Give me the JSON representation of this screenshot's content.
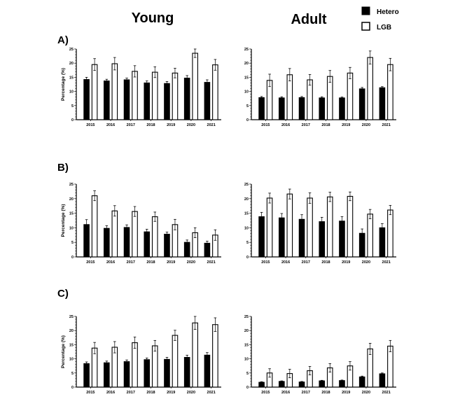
{
  "column_titles": [
    "Young",
    "Adult"
  ],
  "row_labels": [
    "A)",
    "B)",
    "C)"
  ],
  "legend": [
    {
      "name": "Hetero",
      "color": "#000000"
    },
    {
      "name": "LGB",
      "color": "#ffffff"
    }
  ],
  "chart_data": [
    {
      "type": "bar",
      "panel": "A)",
      "column": "Young",
      "categories": [
        "2015",
        "2016",
        "2017",
        "2018",
        "2019",
        "2020",
        "2021"
      ],
      "ylabel": "Percentage (%)",
      "ylim": [
        0,
        25
      ],
      "yticks": [
        "0",
        "5",
        "10",
        "15",
        "20",
        "25"
      ],
      "series": [
        {
          "name": "Hetero",
          "values": [
            14.2,
            13.7,
            14.1,
            13.0,
            12.8,
            14.7,
            13.2
          ],
          "error": [
            0.8,
            0.6,
            0.6,
            0.7,
            0.7,
            0.9,
            0.9
          ]
        },
        {
          "name": "LGB",
          "values": [
            19.5,
            19.8,
            17.1,
            16.8,
            16.5,
            23.5,
            19.4
          ],
          "error": [
            2.1,
            2.2,
            2.0,
            1.9,
            1.7,
            1.5,
            1.9
          ]
        }
      ]
    },
    {
      "type": "bar",
      "panel": "A)",
      "column": "Adult",
      "categories": [
        "2015",
        "2016",
        "2017",
        "2018",
        "2019",
        "2020",
        "2021"
      ],
      "ylabel": "",
      "ylim": [
        0,
        25
      ],
      "yticks": [
        "0",
        "5",
        "10",
        "15",
        "20",
        "25"
      ],
      "series": [
        {
          "name": "Hetero",
          "values": [
            7.8,
            7.7,
            7.8,
            7.7,
            7.7,
            10.9,
            11.3
          ],
          "error": [
            0.4,
            0.4,
            0.4,
            0.4,
            0.3,
            0.5,
            0.4
          ]
        },
        {
          "name": "LGB",
          "values": [
            13.9,
            15.9,
            14.1,
            15.3,
            16.5,
            22.0,
            19.5
          ],
          "error": [
            2.2,
            2.2,
            1.9,
            2.1,
            2.0,
            2.3,
            2.2
          ]
        }
      ]
    },
    {
      "type": "bar",
      "panel": "B)",
      "column": "Young",
      "categories": [
        "2015",
        "2016",
        "2017",
        "2018",
        "2019",
        "2020",
        "2021"
      ],
      "ylabel": "Percentage (%)",
      "ylim": [
        0,
        25
      ],
      "yticks": [
        "0",
        "5",
        "10",
        "15",
        "20",
        "25"
      ],
      "series": [
        {
          "name": "Hetero",
          "values": [
            11.1,
            9.8,
            10.1,
            8.6,
            7.8,
            5.0,
            4.7
          ],
          "error": [
            1.7,
            0.9,
            0.9,
            0.9,
            0.7,
            0.8,
            0.7
          ]
        },
        {
          "name": "LGB",
          "values": [
            21.0,
            15.8,
            15.6,
            13.8,
            11.1,
            8.3,
            7.5
          ],
          "error": [
            1.7,
            1.8,
            1.7,
            1.6,
            1.8,
            1.7,
            1.8
          ]
        }
      ]
    },
    {
      "type": "bar",
      "panel": "B)",
      "column": "Adult",
      "categories": [
        "2015",
        "2016",
        "2017",
        "2018",
        "2019",
        "2020",
        "2021"
      ],
      "ylabel": "",
      "ylim": [
        0,
        25
      ],
      "yticks": [
        "0",
        "5",
        "10",
        "15",
        "20",
        "25"
      ],
      "series": [
        {
          "name": "Hetero",
          "values": [
            13.8,
            13.4,
            12.9,
            12.1,
            12.3,
            8.1,
            10.0
          ],
          "error": [
            1.5,
            1.5,
            1.6,
            1.5,
            1.5,
            1.5,
            1.4
          ]
        },
        {
          "name": "LGB",
          "values": [
            20.2,
            21.6,
            20.2,
            20.6,
            20.8,
            14.7,
            16.1
          ],
          "error": [
            1.7,
            1.7,
            1.8,
            1.6,
            1.5,
            1.6,
            1.6
          ]
        }
      ]
    },
    {
      "type": "bar",
      "panel": "C)",
      "column": "Young",
      "categories": [
        "2015",
        "2016",
        "2017",
        "2018",
        "2019",
        "2020",
        "2021"
      ],
      "ylabel": "Percentage (%)",
      "ylim": [
        0,
        25
      ],
      "yticks": [
        "0",
        "5",
        "10",
        "15",
        "20",
        "25"
      ],
      "series": [
        {
          "name": "Hetero",
          "values": [
            8.3,
            8.6,
            9.0,
            9.7,
            9.8,
            10.5,
            11.3
          ],
          "error": [
            0.6,
            0.6,
            0.6,
            0.6,
            0.7,
            0.8,
            0.9
          ]
        },
        {
          "name": "LGB",
          "values": [
            13.8,
            14.1,
            15.7,
            14.6,
            18.3,
            22.7,
            22.1
          ],
          "error": [
            2.0,
            2.0,
            2.0,
            1.9,
            1.8,
            2.3,
            2.4
          ]
        }
      ]
    },
    {
      "type": "bar",
      "panel": "C)",
      "column": "Adult",
      "categories": [
        "2015",
        "2016",
        "2017",
        "2018",
        "2019",
        "2020",
        "2021"
      ],
      "ylabel": "",
      "ylim": [
        0,
        25
      ],
      "yticks": [
        "0",
        "5",
        "10",
        "15",
        "20",
        "25"
      ],
      "series": [
        {
          "name": "Hetero",
          "values": [
            1.7,
            2.0,
            1.8,
            2.2,
            2.3,
            3.6,
            4.7
          ],
          "error": [
            0.2,
            0.2,
            0.2,
            0.2,
            0.2,
            0.3,
            0.3
          ]
        },
        {
          "name": "LGB",
          "values": [
            5.0,
            4.8,
            5.8,
            6.8,
            7.5,
            13.5,
            14.5
          ],
          "error": [
            1.5,
            1.5,
            1.5,
            1.5,
            1.5,
            2.0,
            2.0
          ]
        }
      ]
    }
  ]
}
